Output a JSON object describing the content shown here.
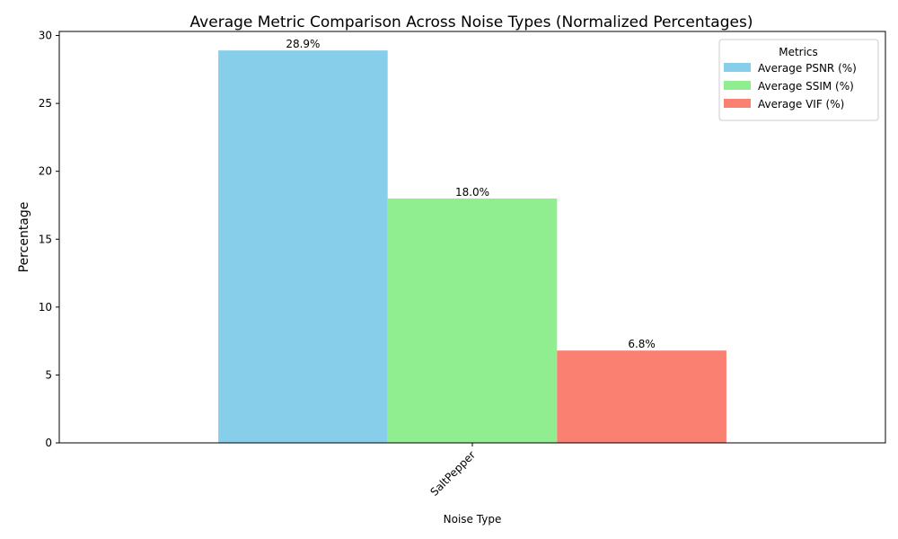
{
  "chart_data": {
    "type": "bar",
    "title": "Average Metric Comparison Across Noise Types (Normalized Percentages)",
    "xlabel": "Noise Type",
    "ylabel": "Percentage",
    "categories": [
      "SaltPepper"
    ],
    "series": [
      {
        "name": "Average PSNR (%)",
        "values": [
          28.9
        ],
        "color": "#87CEEB",
        "label": "28.9%"
      },
      {
        "name": "Average SSIM (%)",
        "values": [
          18.0
        ],
        "color": "#90EE90",
        "label": "18.0%"
      },
      {
        "name": "Average VIF (%)",
        "values": [
          6.8
        ],
        "color": "#FA8072",
        "label": "6.8%"
      }
    ],
    "ylim": [
      0,
      30.3
    ],
    "yticks": [
      0,
      5,
      10,
      15,
      20,
      25,
      30
    ],
    "legend": {
      "title": "Metrics",
      "placement": "top-right"
    },
    "grid": false
  }
}
